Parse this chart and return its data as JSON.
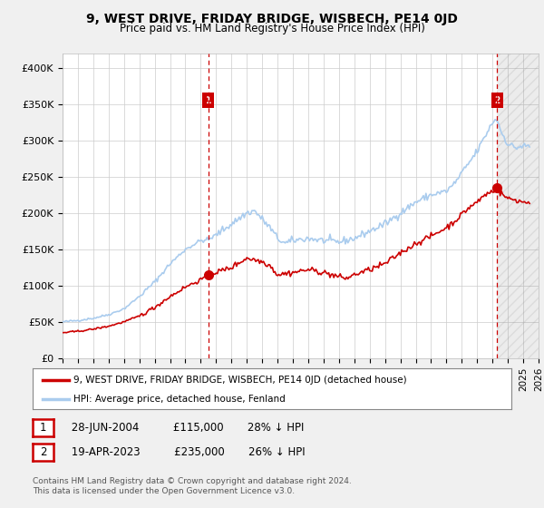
{
  "title": "9, WEST DRIVE, FRIDAY BRIDGE, WISBECH, PE14 0JD",
  "subtitle": "Price paid vs. HM Land Registry's House Price Index (HPI)",
  "xlim_start": 1995.0,
  "xlim_end": 2026.0,
  "ylim_min": 0,
  "ylim_max": 420000,
  "yticks": [
    0,
    50000,
    100000,
    150000,
    200000,
    250000,
    300000,
    350000,
    400000
  ],
  "ytick_labels": [
    "£0",
    "£50K",
    "£100K",
    "£150K",
    "£200K",
    "£250K",
    "£300K",
    "£350K",
    "£400K"
  ],
  "hpi_color": "#aaccee",
  "price_color": "#cc0000",
  "marker1_x": 2004.49,
  "marker1_y": 115000,
  "marker2_x": 2023.3,
  "marker2_y": 235000,
  "legend_label_red": "9, WEST DRIVE, FRIDAY BRIDGE, WISBECH, PE14 0JD (detached house)",
  "legend_label_blue": "HPI: Average price, detached house, Fenland",
  "table_row1": [
    "1",
    "28-JUN-2004",
    "£115,000",
    "28% ↓ HPI"
  ],
  "table_row2": [
    "2",
    "19-APR-2023",
    "£235,000",
    "26% ↓ HPI"
  ],
  "footer": "Contains HM Land Registry data © Crown copyright and database right 2024.\nThis data is licensed under the Open Government Licence v3.0.",
  "bg_color": "#f0f0f0",
  "plot_bg_color": "#ffffff",
  "grid_color": "#cccccc",
  "hatch_start": 2023.3
}
